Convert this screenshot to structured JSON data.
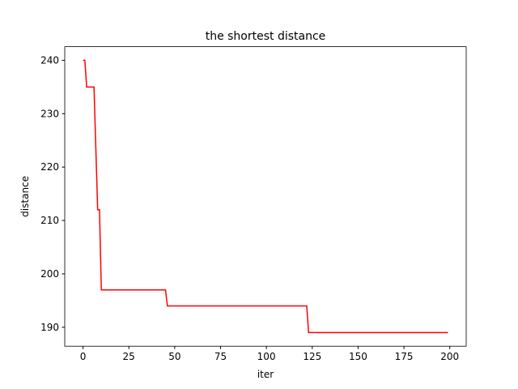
{
  "chart_data": {
    "type": "line",
    "title": "the shortest distance",
    "x_label": "iter",
    "y_label": "distance",
    "x": [
      0,
      1,
      2,
      6,
      8,
      9,
      10,
      45,
      46,
      122,
      123,
      199
    ],
    "series": [
      {
        "name": "distance",
        "color": "#ff0000",
        "values": [
          240,
          240,
          235,
          235,
          212,
          212,
          197,
          197,
          194,
          194,
          189,
          189
        ]
      }
    ],
    "xlim": [
      -9.95,
      208.95
    ],
    "xticks": [
      0,
      25,
      50,
      75,
      100,
      125,
      150,
      175,
      200
    ],
    "ylim": [
      186.45,
      242.55
    ],
    "yticks": [
      190,
      200,
      210,
      220,
      230,
      240
    ]
  }
}
